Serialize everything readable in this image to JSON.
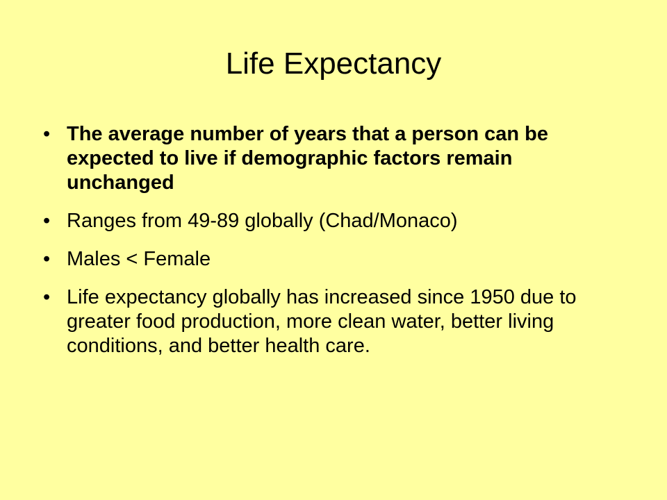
{
  "slide": {
    "title": "Life Expectancy",
    "bullet_symbol": "•",
    "bullets": [
      {
        "text": "The average number of years that a person can be expected to live if demographic factors remain unchanged",
        "bold": true
      },
      {
        "text": "Ranges from 49-89 globally (Chad/Monaco)",
        "bold": false
      },
      {
        "text": "Males < Female",
        "bold": false
      },
      {
        "text": "Life expectancy globally has increased since 1950 due to greater food production, more clean water, better living conditions, and better health care.",
        "bold": false
      }
    ]
  },
  "colors": {
    "background": "#FFFFA0",
    "text": "#000000"
  }
}
